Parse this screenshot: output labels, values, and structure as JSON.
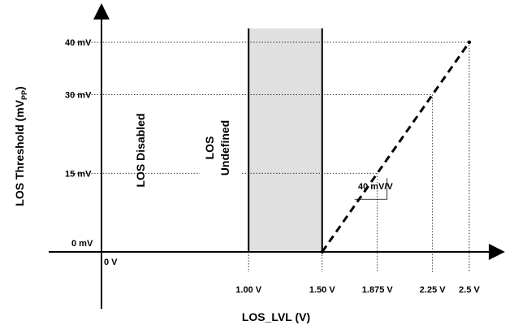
{
  "chart_data": {
    "type": "line",
    "title": "",
    "xlabel": "LOS_LVL (V)",
    "ylabel": "LOS Threshold (mV",
    "ylabel_sub": "PP",
    "ylabel_close": ")",
    "xlim": [
      0,
      2.5
    ],
    "ylim": [
      0,
      40
    ],
    "x_ticks": [
      {
        "value": 0,
        "label": "0 V"
      },
      {
        "value": 1.0,
        "label": "1.00 V"
      },
      {
        "value": 1.5,
        "label": "1.50 V"
      },
      {
        "value": 1.875,
        "label": "1.875 V"
      },
      {
        "value": 2.25,
        "label": "2.25 V"
      },
      {
        "value": 2.5,
        "label": "2.5 V"
      }
    ],
    "y_ticks": [
      {
        "value": 0,
        "label": "0 mV"
      },
      {
        "value": 15,
        "label": "15 mV"
      },
      {
        "value": 30,
        "label": "30 mV"
      },
      {
        "value": 40,
        "label": "40 mV"
      }
    ],
    "series": [
      {
        "x": [
          1.5,
          1.875,
          2.25,
          2.5
        ],
        "y": [
          0,
          15,
          30,
          40
        ],
        "style": "dashed"
      }
    ],
    "regions": [
      {
        "label_lines": [
          "LOS Disabled"
        ],
        "x_from": 0,
        "x_to": 1.0,
        "shaded": false
      },
      {
        "label_lines": [
          "LOS",
          "Undefined"
        ],
        "x_from": 1.0,
        "x_to": 1.5,
        "shaded": true
      }
    ],
    "annotations": [
      {
        "text": "40 mV/V",
        "kind": "slope"
      }
    ],
    "grid": "dotted guide lines at labeled values",
    "legend": "none",
    "colors": {
      "region_fill": "#e0e0e0",
      "line": "#000000"
    }
  }
}
